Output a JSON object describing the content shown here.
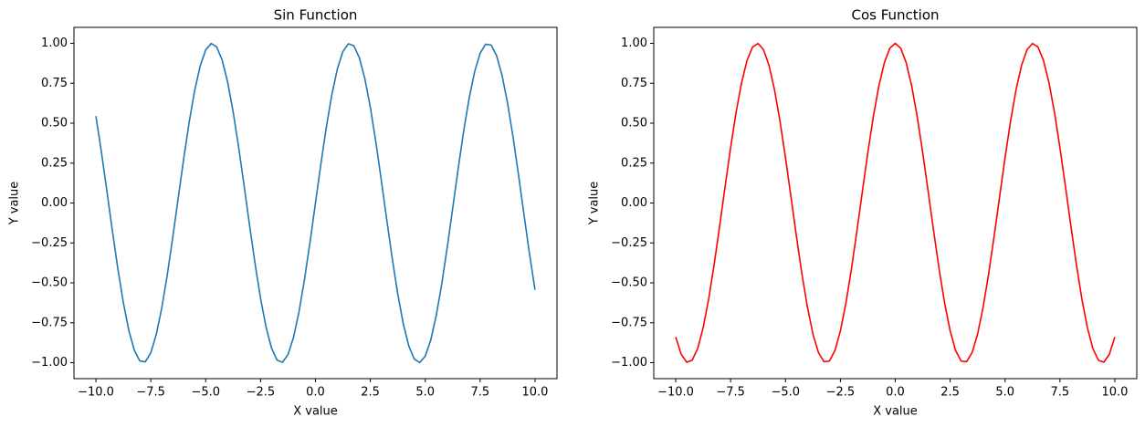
{
  "chart_data": [
    {
      "type": "line",
      "title": "Sin Function",
      "xlabel": "X value",
      "ylabel": "Y value",
      "color": "#1f77b4",
      "x": [
        -10,
        -9.75,
        -9.5,
        -9.25,
        -9,
        -8.75,
        -8.5,
        -8.25,
        -8,
        -7.75,
        -7.5,
        -7.25,
        -7,
        -6.75,
        -6.5,
        -6.25,
        -6,
        -5.75,
        -5.5,
        -5.25,
        -5,
        -4.75,
        -4.5,
        -4.25,
        -4,
        -3.75,
        -3.5,
        -3.25,
        -3,
        -2.75,
        -2.5,
        -2.25,
        -2,
        -1.75,
        -1.5,
        -1.25,
        -1,
        -0.75,
        -0.5,
        -0.25,
        0,
        0.25,
        0.5,
        0.75,
        1,
        1.25,
        1.5,
        1.75,
        2,
        2.25,
        2.5,
        2.75,
        3,
        3.25,
        3.5,
        3.75,
        4,
        4.25,
        4.5,
        4.75,
        5,
        5.25,
        5.5,
        5.75,
        6,
        6.25,
        6.5,
        6.75,
        7,
        7.25,
        7.5,
        7.75,
        8,
        8.25,
        8.5,
        8.75,
        9,
        9.25,
        9.5,
        9.75,
        10
      ],
      "values": [
        0.544,
        0.3195,
        0.0752,
        -0.1743,
        -0.4121,
        -0.6247,
        -0.7985,
        -0.9226,
        -0.9894,
        -0.9946,
        -0.938,
        -0.8226,
        -0.657,
        -0.45,
        -0.2151,
        0.0332,
        0.2794,
        0.5083,
        0.7055,
        0.8589,
        0.9589,
        0.9993,
        0.9775,
        0.895,
        0.7568,
        0.5716,
        0.3508,
        0.1082,
        -0.1411,
        -0.3817,
        -0.5985,
        -0.7781,
        -0.9093,
        -0.984,
        -0.9975,
        -0.949,
        -0.8415,
        -0.6816,
        -0.4794,
        -0.2474,
        0,
        0.2474,
        0.4794,
        0.6816,
        0.8415,
        0.949,
        0.9975,
        0.984,
        0.9093,
        0.7781,
        0.5985,
        0.3817,
        0.1411,
        -0.1082,
        -0.3508,
        -0.5716,
        -0.7568,
        -0.895,
        -0.9775,
        -0.9993,
        -0.9589,
        -0.8589,
        -0.7055,
        -0.5083,
        -0.2794,
        -0.0332,
        0.2151,
        0.45,
        0.657,
        0.8226,
        0.938,
        0.9946,
        0.9894,
        0.9226,
        0.7985,
        0.6247,
        0.4121,
        0.1743,
        -0.0752,
        -0.3195,
        -0.544
      ],
      "xlim": [
        -11,
        11
      ],
      "ylim": [
        -1.1,
        1.1
      ],
      "xticks": [
        {
          "value": -10,
          "label": "−10.0"
        },
        {
          "value": -7.5,
          "label": "−7.5"
        },
        {
          "value": -5,
          "label": "−5.0"
        },
        {
          "value": -2.5,
          "label": "−2.5"
        },
        {
          "value": 0,
          "label": "0.0"
        },
        {
          "value": 2.5,
          "label": "2.5"
        },
        {
          "value": 5,
          "label": "5.0"
        },
        {
          "value": 7.5,
          "label": "7.5"
        },
        {
          "value": 10,
          "label": "10.0"
        }
      ],
      "yticks": [
        {
          "value": -1,
          "label": "−1.00"
        },
        {
          "value": -0.75,
          "label": "−0.75"
        },
        {
          "value": -0.5,
          "label": "−0.50"
        },
        {
          "value": -0.25,
          "label": "−0.25"
        },
        {
          "value": 0,
          "label": "0.00"
        },
        {
          "value": 0.25,
          "label": "0.25"
        },
        {
          "value": 0.5,
          "label": "0.50"
        },
        {
          "value": 0.75,
          "label": "0.75"
        },
        {
          "value": 1,
          "label": "1.00"
        }
      ]
    },
    {
      "type": "line",
      "title": "Cos Function",
      "xlabel": "X value",
      "ylabel": "Y value",
      "color": "#ff0000",
      "x": [
        -10,
        -9.75,
        -9.5,
        -9.25,
        -9,
        -8.75,
        -8.5,
        -8.25,
        -8,
        -7.75,
        -7.5,
        -7.25,
        -7,
        -6.75,
        -6.5,
        -6.25,
        -6,
        -5.75,
        -5.5,
        -5.25,
        -5,
        -4.75,
        -4.5,
        -4.25,
        -4,
        -3.75,
        -3.5,
        -3.25,
        -3,
        -2.75,
        -2.5,
        -2.25,
        -2,
        -1.75,
        -1.5,
        -1.25,
        -1,
        -0.75,
        -0.5,
        -0.25,
        0,
        0.25,
        0.5,
        0.75,
        1,
        1.25,
        1.5,
        1.75,
        2,
        2.25,
        2.5,
        2.75,
        3,
        3.25,
        3.5,
        3.75,
        4,
        4.25,
        4.5,
        4.75,
        5,
        5.25,
        5.5,
        5.75,
        6,
        6.25,
        6.5,
        6.75,
        7,
        7.25,
        7.5,
        7.75,
        8,
        8.25,
        8.5,
        8.75,
        9,
        9.25,
        9.5,
        9.75,
        10
      ],
      "values": [
        -0.8391,
        -0.9476,
        -0.9972,
        -0.9847,
        -0.9111,
        -0.7809,
        -0.602,
        -0.3857,
        -0.1455,
        0.104,
        0.3466,
        0.5686,
        0.7539,
        0.893,
        0.9766,
        0.9994,
        0.9602,
        0.8612,
        0.7087,
        0.5122,
        0.2837,
        0.0376,
        -0.2108,
        -0.4461,
        -0.6536,
        -0.8206,
        -0.9365,
        -0.9941,
        -0.99,
        -0.9243,
        -0.8011,
        -0.6282,
        -0.4161,
        -0.1782,
        0.0707,
        0.3153,
        0.5403,
        0.7317,
        0.8776,
        0.9689,
        1,
        0.9689,
        0.8776,
        0.7317,
        0.5403,
        0.3153,
        0.0707,
        -0.1782,
        -0.4161,
        -0.6282,
        -0.8011,
        -0.9243,
        -0.99,
        -0.9941,
        -0.9365,
        -0.8206,
        -0.6536,
        -0.4461,
        -0.2108,
        0.0376,
        0.2837,
        0.5122,
        0.7087,
        0.8612,
        0.9602,
        0.9994,
        0.9766,
        0.893,
        0.7539,
        0.5686,
        0.3466,
        0.104,
        -0.1455,
        -0.3857,
        -0.602,
        -0.7809,
        -0.9111,
        -0.9847,
        -0.9972,
        -0.9476,
        -0.8391
      ],
      "xlim": [
        -11,
        11
      ],
      "ylim": [
        -1.1,
        1.1
      ],
      "xticks": [
        {
          "value": -10,
          "label": "−10.0"
        },
        {
          "value": -7.5,
          "label": "−7.5"
        },
        {
          "value": -5,
          "label": "−5.0"
        },
        {
          "value": -2.5,
          "label": "−2.5"
        },
        {
          "value": 0,
          "label": "0.0"
        },
        {
          "value": 2.5,
          "label": "2.5"
        },
        {
          "value": 5,
          "label": "5.0"
        },
        {
          "value": 7.5,
          "label": "7.5"
        },
        {
          "value": 10,
          "label": "10.0"
        }
      ],
      "yticks": [
        {
          "value": -1,
          "label": "−1.00"
        },
        {
          "value": -0.75,
          "label": "−0.75"
        },
        {
          "value": -0.5,
          "label": "−0.50"
        },
        {
          "value": -0.25,
          "label": "−0.25"
        },
        {
          "value": 0,
          "label": "0.00"
        },
        {
          "value": 0.25,
          "label": "0.25"
        },
        {
          "value": 0.5,
          "label": "0.50"
        },
        {
          "value": 0.75,
          "label": "0.75"
        },
        {
          "value": 1,
          "label": "1.00"
        }
      ]
    }
  ]
}
